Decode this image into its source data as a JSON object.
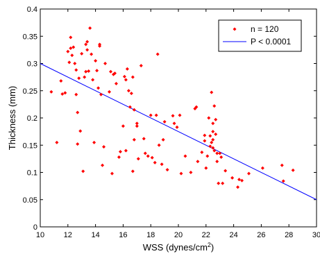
{
  "chart_data": {
    "type": "scatter",
    "xlabel_main": "WSS (dynes/cm",
    "xlabel_sup": "2",
    "xlabel_tail": ")",
    "ylabel": "Thickness (mm)",
    "xlim": [
      10,
      30
    ],
    "ylim": [
      0,
      0.4
    ],
    "xticks": [
      "10",
      "12",
      "14",
      "16",
      "18",
      "20",
      "22",
      "24",
      "26",
      "28",
      "30"
    ],
    "yticks": [
      "0",
      "0.05",
      "0.1",
      "0.15",
      "0.2",
      "0.25",
      "0.3",
      "0.35",
      "0.4"
    ],
    "legend_position": "top-right",
    "legend": {
      "scatter_label": "n = 120",
      "line_label": "P < 0.0001"
    },
    "colors": {
      "points": "#ff0000",
      "fit_line": "#0000ff",
      "axis": "#000000"
    },
    "series": [
      {
        "name": "n = 120",
        "kind": "scatter",
        "points": [
          [
            10.8,
            0.248
          ],
          [
            11.2,
            0.155
          ],
          [
            11.5,
            0.268
          ],
          [
            11.6,
            0.244
          ],
          [
            11.8,
            0.246
          ],
          [
            12.0,
            0.322
          ],
          [
            12.1,
            0.302
          ],
          [
            12.2,
            0.348
          ],
          [
            12.2,
            0.328
          ],
          [
            12.3,
            0.315
          ],
          [
            12.4,
            0.33
          ],
          [
            12.5,
            0.3
          ],
          [
            12.6,
            0.288
          ],
          [
            12.6,
            0.243
          ],
          [
            12.7,
            0.21
          ],
          [
            12.7,
            0.152
          ],
          [
            12.8,
            0.273
          ],
          [
            12.9,
            0.176
          ],
          [
            13.0,
            0.318
          ],
          [
            13.1,
            0.102
          ],
          [
            13.2,
            0.275
          ],
          [
            13.3,
            0.335
          ],
          [
            13.3,
            0.285
          ],
          [
            13.4,
            0.34
          ],
          [
            13.4,
            0.325
          ],
          [
            13.5,
            0.286
          ],
          [
            13.6,
            0.365
          ],
          [
            13.7,
            0.317
          ],
          [
            13.8,
            0.27
          ],
          [
            13.9,
            0.155
          ],
          [
            14.0,
            0.305
          ],
          [
            14.1,
            0.287
          ],
          [
            14.2,
            0.255
          ],
          [
            14.3,
            0.335
          ],
          [
            14.3,
            0.332
          ],
          [
            14.4,
            0.243
          ],
          [
            14.5,
            0.113
          ],
          [
            14.6,
            0.147
          ],
          [
            14.7,
            0.3
          ],
          [
            15.0,
            0.248
          ],
          [
            15.1,
            0.285
          ],
          [
            15.2,
            0.098
          ],
          [
            15.3,
            0.28
          ],
          [
            15.4,
            0.282
          ],
          [
            15.5,
            0.263
          ],
          [
            15.7,
            0.128
          ],
          [
            15.8,
            0.138
          ],
          [
            16.0,
            0.185
          ],
          [
            16.1,
            0.276
          ],
          [
            16.2,
            0.27
          ],
          [
            16.2,
            0.14
          ],
          [
            16.3,
            0.29
          ],
          [
            16.4,
            0.25
          ],
          [
            16.5,
            0.22
          ],
          [
            16.6,
            0.245
          ],
          [
            16.7,
            0.275
          ],
          [
            16.7,
            0.102
          ],
          [
            16.8,
            0.215
          ],
          [
            16.8,
            0.16
          ],
          [
            17.0,
            0.19
          ],
          [
            17.0,
            0.185
          ],
          [
            17.1,
            0.125
          ],
          [
            17.3,
            0.296
          ],
          [
            17.5,
            0.162
          ],
          [
            17.6,
            0.135
          ],
          [
            17.8,
            0.13
          ],
          [
            18.0,
            0.205
          ],
          [
            18.1,
            0.127
          ],
          [
            18.3,
            0.118
          ],
          [
            18.4,
            0.205
          ],
          [
            18.5,
            0.317
          ],
          [
            18.6,
            0.15
          ],
          [
            18.8,
            0.115
          ],
          [
            18.9,
            0.16
          ],
          [
            19.0,
            0.193
          ],
          [
            19.2,
            0.105
          ],
          [
            19.6,
            0.204
          ],
          [
            19.7,
            0.19
          ],
          [
            19.9,
            0.183
          ],
          [
            20.1,
            0.205
          ],
          [
            20.2,
            0.098
          ],
          [
            20.5,
            0.13
          ],
          [
            20.9,
            0.1
          ],
          [
            21.2,
            0.217
          ],
          [
            21.3,
            0.22
          ],
          [
            21.4,
            0.12
          ],
          [
            21.7,
            0.137
          ],
          [
            21.9,
            0.168
          ],
          [
            21.9,
            0.158
          ],
          [
            22.0,
            0.108
          ],
          [
            22.1,
            0.13
          ],
          [
            22.2,
            0.2
          ],
          [
            22.3,
            0.167
          ],
          [
            22.3,
            0.148
          ],
          [
            22.4,
            0.247
          ],
          [
            22.4,
            0.155
          ],
          [
            22.5,
            0.19
          ],
          [
            22.5,
            0.175
          ],
          [
            22.5,
            0.16
          ],
          [
            22.5,
            0.145
          ],
          [
            22.6,
            0.222
          ],
          [
            22.6,
            0.14
          ],
          [
            22.7,
            0.197
          ],
          [
            22.7,
            0.17
          ],
          [
            22.8,
            0.135
          ],
          [
            22.8,
            0.12
          ],
          [
            22.9,
            0.08
          ],
          [
            23.0,
            0.135
          ],
          [
            23.1,
            0.128
          ],
          [
            23.2,
            0.08
          ],
          [
            23.4,
            0.103
          ],
          [
            23.9,
            0.09
          ],
          [
            24.3,
            0.073
          ],
          [
            24.4,
            0.087
          ],
          [
            25.1,
            0.098
          ],
          [
            26.1,
            0.108
          ],
          [
            27.5,
            0.113
          ],
          [
            27.6,
            0.084
          ],
          [
            28.3,
            0.104
          ],
          [
            24.6,
            0.085
          ]
        ]
      },
      {
        "name": "P < 0.0001",
        "kind": "line",
        "x": [
          10,
          30
        ],
        "y": [
          0.3,
          0.05
        ]
      }
    ]
  }
}
